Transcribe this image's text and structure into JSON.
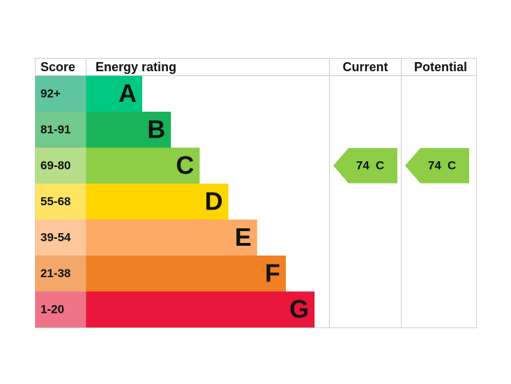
{
  "header": {
    "score": "Score",
    "rating": "Energy rating",
    "current": "Current",
    "potential": "Potential"
  },
  "bands": [
    {
      "score": "92+",
      "letter": "A",
      "color": "#00c781",
      "score_color": "#5fc5a0"
    },
    {
      "score": "81-91",
      "letter": "B",
      "color": "#19b459",
      "score_color": "#72c98c"
    },
    {
      "score": "69-80",
      "letter": "C",
      "color": "#8dce46",
      "score_color": "#b6de8a"
    },
    {
      "score": "55-68",
      "letter": "D",
      "color": "#ffd500",
      "score_color": "#ffe363"
    },
    {
      "score": "39-54",
      "letter": "E",
      "color": "#fcaa65",
      "score_color": "#fdc69b"
    },
    {
      "score": "21-38",
      "letter": "F",
      "color": "#ef8023",
      "score_color": "#f3a86a"
    },
    {
      "score": "1-20",
      "letter": "G",
      "color": "#e9153b",
      "score_color": "#ef7387"
    }
  ],
  "current": {
    "value": 74,
    "letter": "C"
  },
  "potential": {
    "value": 74,
    "letter": "C"
  }
}
